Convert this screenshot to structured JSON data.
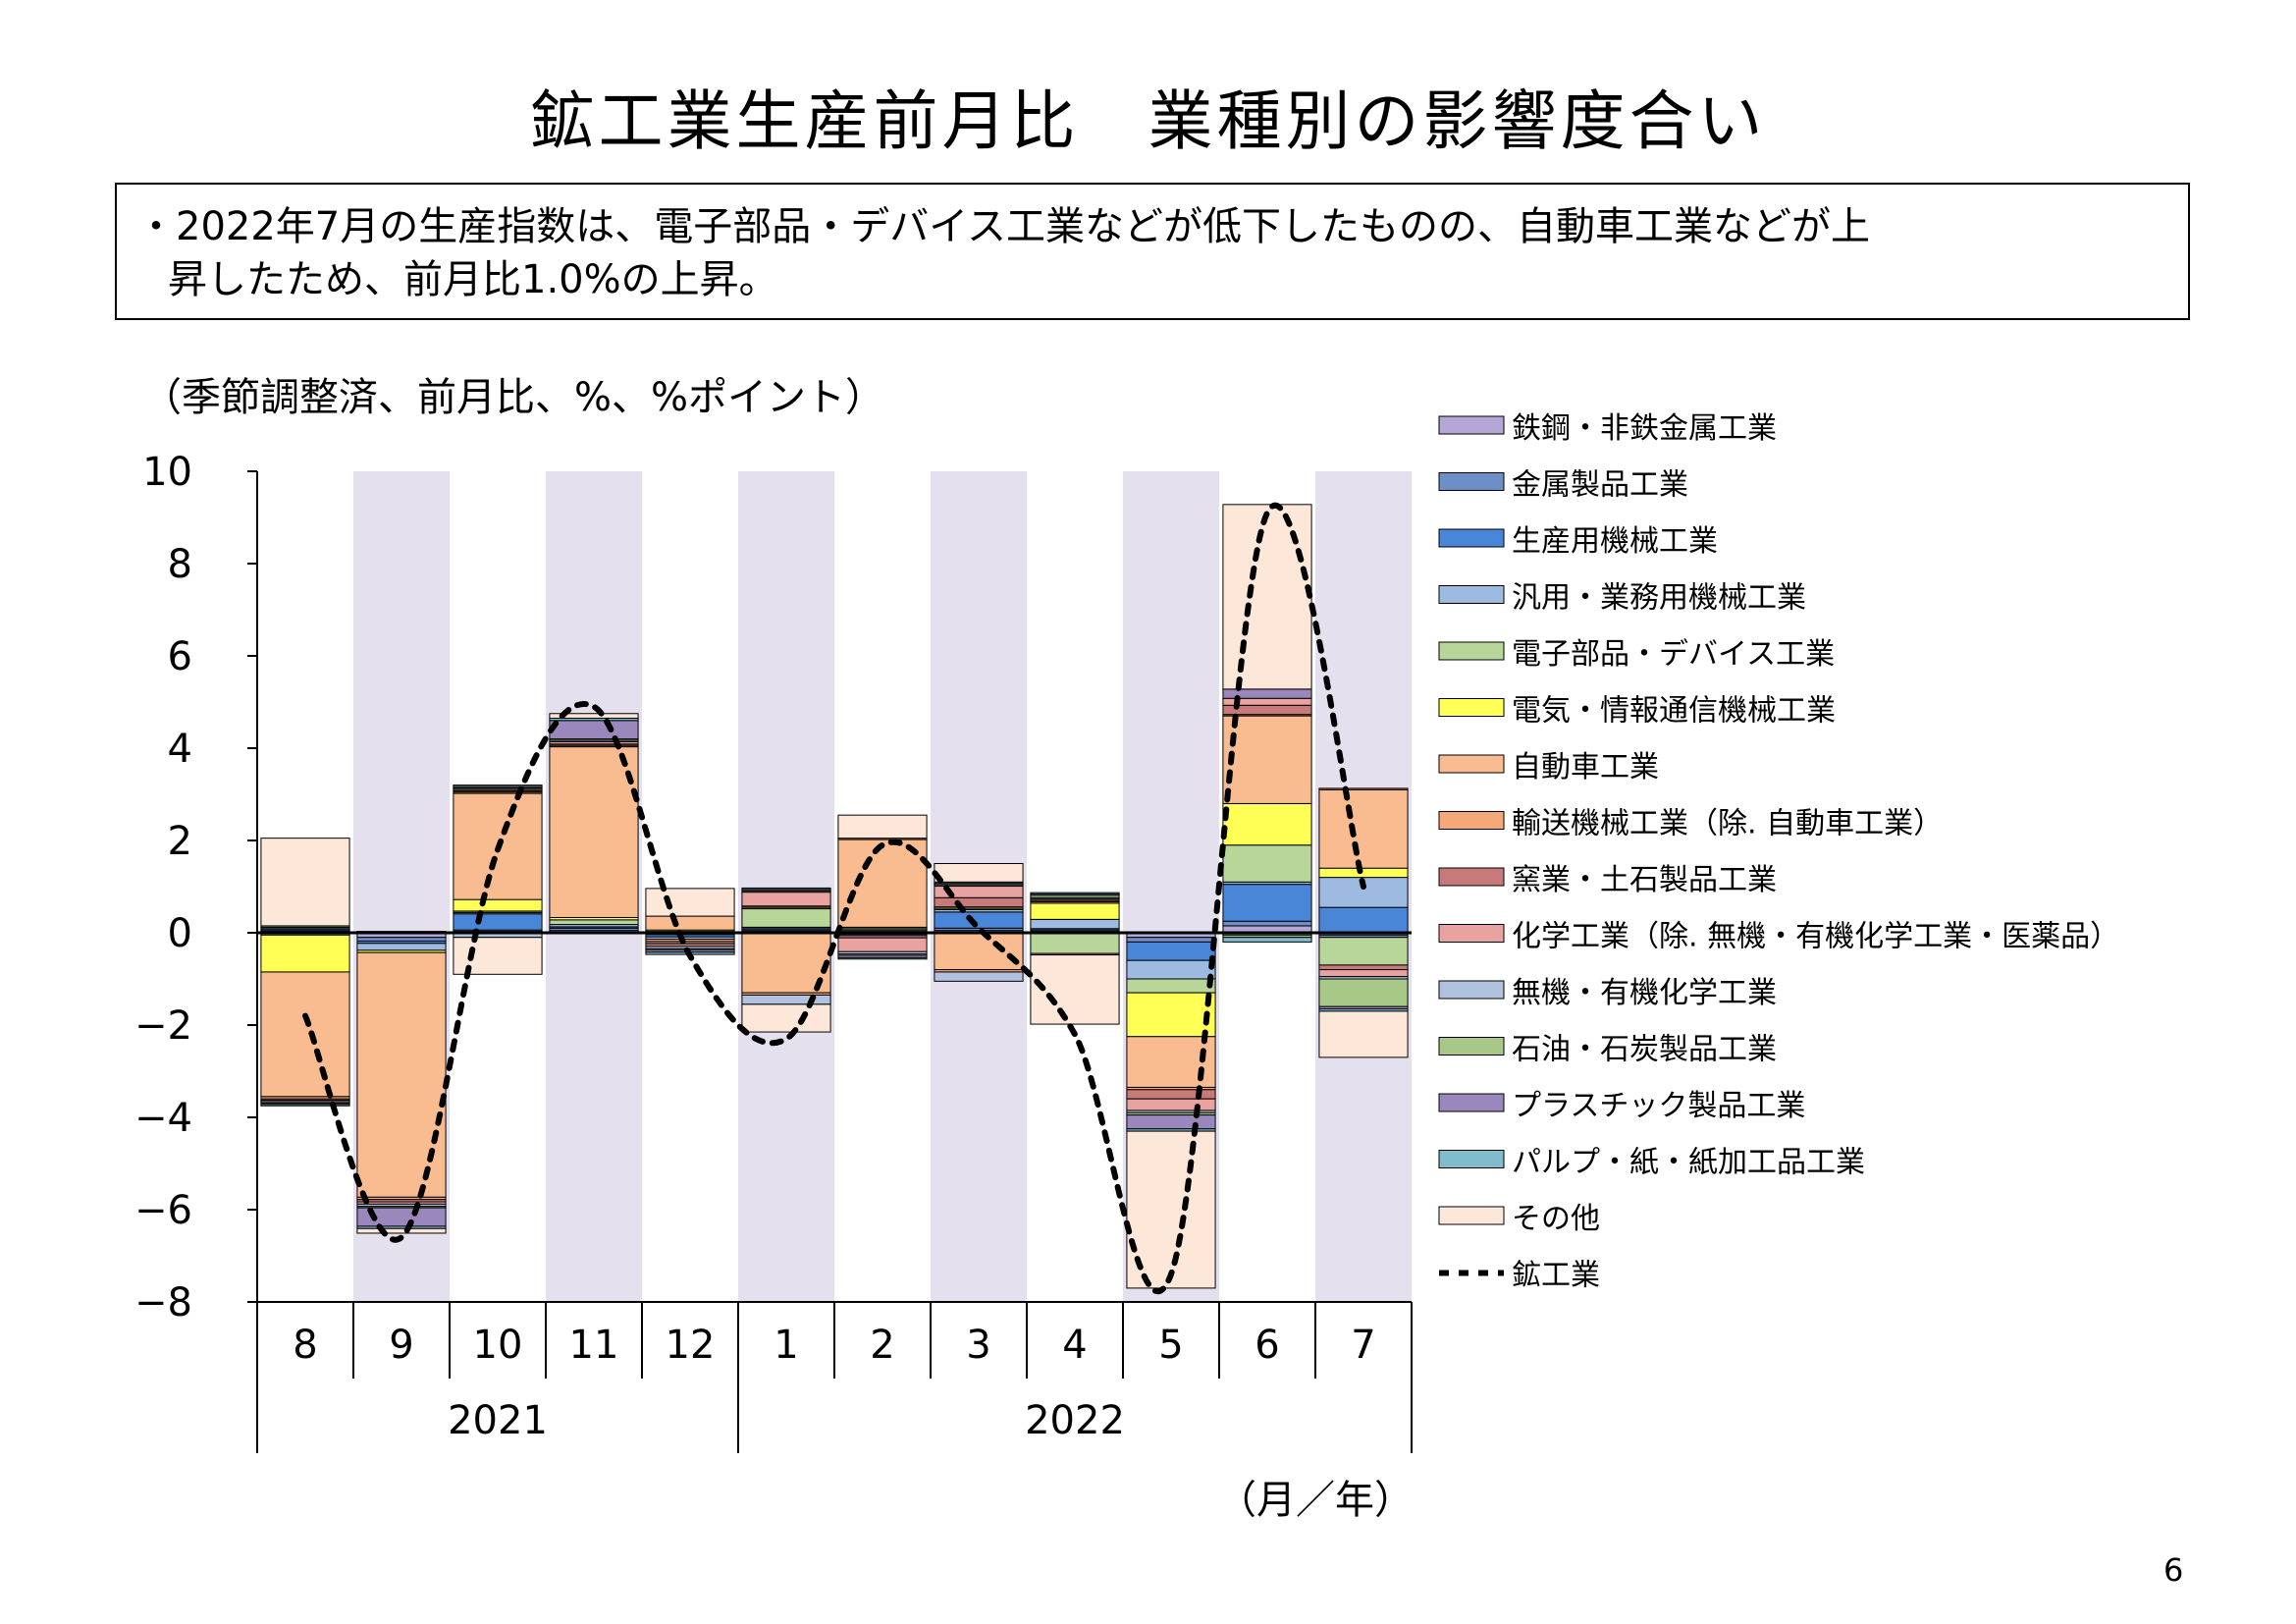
{
  "page": {
    "title": "鉱工業生産前月比　業種別の影響度合い",
    "summary_line1": "・2022年7月の生産指数は、電子部品・デバイス工業などが低下したものの、自動車工業などが上",
    "summary_line2": "昇したため、前月比1.0%の上昇。",
    "unit_label": "（季節調整済、前月比、%、%ポイント）",
    "x_unit_label": "（月／年）",
    "page_number": "6"
  },
  "chart_data": {
    "type": "bar",
    "stacked": true,
    "ylim": [
      -8,
      10
    ],
    "yticks": [
      10,
      8,
      6,
      4,
      2,
      0,
      -2,
      -4,
      -6,
      -8
    ],
    "categories": [
      "8",
      "9",
      "10",
      "11",
      "12",
      "1",
      "2",
      "3",
      "4",
      "5",
      "6",
      "7"
    ],
    "year_groups": [
      {
        "label": "2021",
        "start": 0,
        "count": 5
      },
      {
        "label": "2022",
        "start": 5,
        "count": 7
      }
    ],
    "shaded_months": [
      1,
      3,
      5,
      7,
      9,
      11
    ],
    "shade_color": "#e4e0ee",
    "legend_position": "right",
    "series": [
      {
        "name": "鉄鋼・非鉄金属工業",
        "color": "#b4a7d6",
        "values": [
          0.03,
          -0.1,
          0.03,
          0.05,
          -0.02,
          0.03,
          -0.03,
          0.05,
          0.03,
          -0.1,
          0.15,
          -0.05
        ]
      },
      {
        "name": "金属製品工業",
        "color": "#6d8fc8",
        "values": [
          0.03,
          -0.08,
          0.03,
          0.05,
          -0.02,
          0.03,
          -0.03,
          0.05,
          0.03,
          -0.1,
          0.1,
          -0.05
        ]
      },
      {
        "name": "生産用機械工業",
        "color": "#4a86d8",
        "values": [
          0.03,
          -0.05,
          0.35,
          0.03,
          -0.05,
          0.03,
          0.03,
          0.35,
          0.03,
          -0.4,
          0.8,
          0.55
        ]
      },
      {
        "name": "汎用・業務用機械工業",
        "color": "#9dbbe0",
        "values": [
          0.03,
          -0.15,
          0.03,
          0.05,
          -0.05,
          0.03,
          0.03,
          0.05,
          0.2,
          -0.4,
          0.05,
          0.65
        ]
      },
      {
        "name": "電子部品・デバイス工業",
        "color": "#b8d59a",
        "values": [
          -0.05,
          0.03,
          0.03,
          0.1,
          0.03,
          0.4,
          0.03,
          0.03,
          -0.45,
          -0.3,
          0.8,
          -0.6
        ]
      },
      {
        "name": "電気・情報通信機械工業",
        "color": "#ffff55",
        "values": [
          -0.8,
          -0.05,
          0.25,
          0.05,
          0.03,
          0.03,
          0.03,
          0.03,
          0.35,
          -0.95,
          0.9,
          0.2
        ]
      },
      {
        "name": "自動車工業",
        "color": "#f8bc90",
        "values": [
          -2.7,
          -5.3,
          2.3,
          3.7,
          0.3,
          -1.3,
          1.9,
          -0.8,
          0.03,
          -1.1,
          1.9,
          1.7
        ]
      },
      {
        "name": "輸送機械工業（除. 自動車工業）",
        "color": "#f5a878",
        "values": [
          -0.05,
          -0.05,
          0.03,
          0.03,
          -0.05,
          -0.05,
          0.03,
          -0.05,
          -0.03,
          -0.05,
          0.03,
          0.03
        ]
      },
      {
        "name": "窯業・土石製品工業",
        "color": "#c87a7a",
        "values": [
          -0.03,
          -0.05,
          0.03,
          0.03,
          -0.05,
          0.03,
          -0.05,
          0.2,
          0.03,
          -0.2,
          0.2,
          -0.1
        ]
      },
      {
        "name": "化学工業（除. 無機・有機化学工業・医薬品）",
        "color": "#e8a3a0",
        "values": [
          -0.03,
          -0.05,
          0.03,
          0.05,
          -0.05,
          0.3,
          -0.3,
          0.25,
          0.03,
          -0.25,
          0.15,
          -0.15
        ]
      },
      {
        "name": "無機・有機化学工業",
        "color": "#b0c2e0",
        "values": [
          -0.03,
          -0.05,
          -0.1,
          0.03,
          -0.05,
          -0.2,
          -0.05,
          -0.2,
          0.03,
          -0.05,
          -0.05,
          -0.05
        ]
      },
      {
        "name": "石油・石炭製品工業",
        "color": "#a8c888",
        "values": [
          0.03,
          -0.03,
          0.03,
          0.03,
          -0.03,
          0.03,
          -0.03,
          0.03,
          0.05,
          -0.05,
          -0.05,
          -0.6
        ]
      },
      {
        "name": "プラスチック製品工業",
        "color": "#9a88bc",
        "values": [
          -0.03,
          -0.4,
          0.03,
          0.4,
          -0.05,
          0.03,
          -0.05,
          0.03,
          0.03,
          -0.3,
          0.2,
          -0.05
        ]
      },
      {
        "name": "パルプ・紙・紙加工品工業",
        "color": "#7fbccc",
        "values": [
          -0.03,
          -0.05,
          0.03,
          0.05,
          -0.05,
          0.03,
          -0.03,
          0.03,
          0.03,
          -0.05,
          -0.1,
          -0.05
        ]
      },
      {
        "name": "その他",
        "color": "#fde7d9",
        "values": [
          1.9,
          -0.1,
          -0.8,
          0.1,
          0.6,
          -0.6,
          0.5,
          0.4,
          -1.5,
          -3.4,
          4.0,
          -1.0
        ]
      }
    ],
    "line_series": {
      "name": "鉱工業",
      "color": "#000000",
      "values": [
        -1.8,
        -6.6,
        1.8,
        4.9,
        -0.5,
        -2.3,
        1.9,
        0.1,
        -2.2,
        -7.4,
        9.1,
        1.0
      ]
    }
  }
}
